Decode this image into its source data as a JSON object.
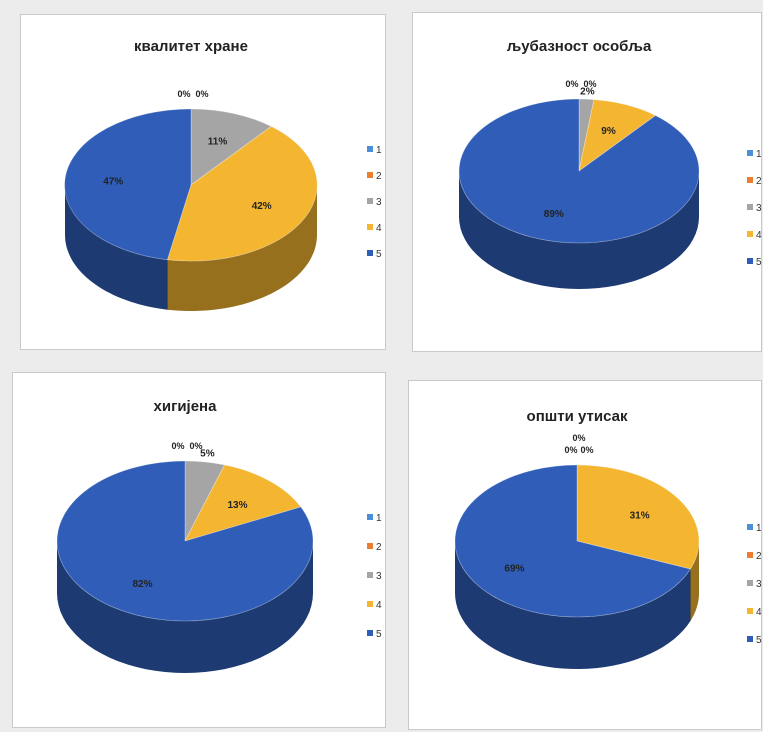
{
  "colors": {
    "c1": "#4a90d9",
    "c2": "#ed7d31",
    "c3": "#a5a5a5",
    "c4": "#f4b531",
    "c5": "#2f5db8"
  },
  "chart_data": [
    {
      "type": "pie",
      "title": "квалитет хране",
      "categories": [
        "1",
        "2",
        "3",
        "4",
        "5"
      ],
      "values": [
        0,
        0,
        11,
        42,
        47
      ],
      "labels": [
        "0%",
        "0%",
        "11%",
        "42%",
        "47%"
      ],
      "legend": "right",
      "three_d": true
    },
    {
      "type": "pie",
      "title": "љубазност особља",
      "categories": [
        "1",
        "2",
        "3",
        "4",
        "5"
      ],
      "values": [
        0,
        0,
        2,
        9,
        89
      ],
      "labels": [
        "0%",
        "0%",
        "2%",
        "9%",
        "89%"
      ],
      "legend": "right",
      "three_d": true
    },
    {
      "type": "pie",
      "title": "хигијена",
      "categories": [
        "1",
        "2",
        "3",
        "4",
        "5"
      ],
      "values": [
        0,
        0,
        5,
        13,
        82
      ],
      "labels": [
        "0%",
        "0%",
        "5%",
        "13%",
        "82%"
      ],
      "legend": "right",
      "three_d": true
    },
    {
      "type": "pie",
      "title": "општи утисак",
      "categories": [
        "1",
        "2",
        "3",
        "4",
        "5"
      ],
      "values": [
        0,
        0,
        0,
        31,
        69
      ],
      "labels": [
        "0%",
        "0%",
        "0%",
        "31%",
        "69%"
      ],
      "legend": "right",
      "three_d": true
    }
  ]
}
